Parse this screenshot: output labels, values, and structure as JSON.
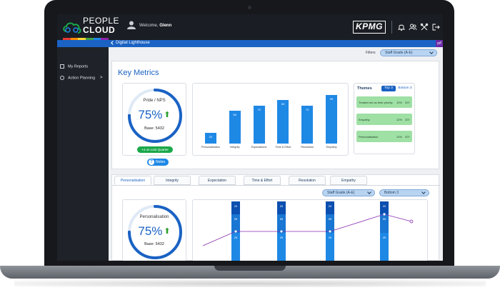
{
  "app": {
    "brand_line1": "PEOPLE",
    "brand_line2": "CLOUD",
    "welcome_prefix": "Welcome, ",
    "user_name": "Glenn",
    "partner_logo": "KPMG",
    "icons": [
      "bell-icon",
      "users-icon",
      "settings-icon",
      "logout-icon"
    ]
  },
  "subbar": {
    "title": "Digital Lighthouse",
    "badge": "p/f"
  },
  "sidebar": {
    "items": [
      {
        "label": "My Reports",
        "icon": "reports-icon"
      },
      {
        "label": "Action Planning",
        "icon": "action-icon",
        "chevron": ">"
      }
    ]
  },
  "filters": {
    "label": "Filters",
    "selected": "Staff Grade (A-E)"
  },
  "key_metrics": {
    "title": "Key Metrics",
    "gauge": {
      "label": "Pride / NPS",
      "value": "75%",
      "fill": 0.75,
      "base": "Base: 5432",
      "change": "+4 on Last Quarter",
      "notes_label": "Notes"
    }
  },
  "chart_data": {
    "type": "bar",
    "categories": [
      "Personalisation",
      "Integrity",
      "Expectations",
      "Time & Effort",
      "Resolution",
      "Empathy"
    ],
    "values": [
      20,
      60,
      70,
      80,
      70,
      90
    ],
    "title": "",
    "xlabel": "",
    "ylabel": "",
    "ylim": [
      0,
      100
    ],
    "grid": false
  },
  "themes": {
    "title": "Themes",
    "toggle": [
      "Top 3",
      "Bottom 3"
    ],
    "active": "Top 3",
    "rows": [
      {
        "name": "Treated me as their priority",
        "pct": "12%",
        "count": "207"
      },
      {
        "name": "Empathy",
        "pct": "12%",
        "count": "207"
      },
      {
        "name": "Personalisation",
        "pct": "12%",
        "count": "207"
      }
    ]
  },
  "detail": {
    "tabs": [
      "Personalisation",
      "Integrity",
      "Expectation",
      "Time & Effort",
      "Resolution",
      "Empathy"
    ],
    "active_tab": "Personalisation",
    "filter_grade": "Staff Grade (A-E)",
    "filter_bottom": "Bottom 3",
    "gauge": {
      "label": "Personalisation",
      "value": "75%",
      "fill": 0.75,
      "base": "Base: 5432"
    },
    "stack_labels": [
      [
        "20",
        "55",
        "25"
      ],
      [
        "20",
        "55",
        "25"
      ],
      [
        "20",
        "55",
        "25"
      ],
      [
        "20",
        "55",
        "25"
      ]
    ]
  }
}
